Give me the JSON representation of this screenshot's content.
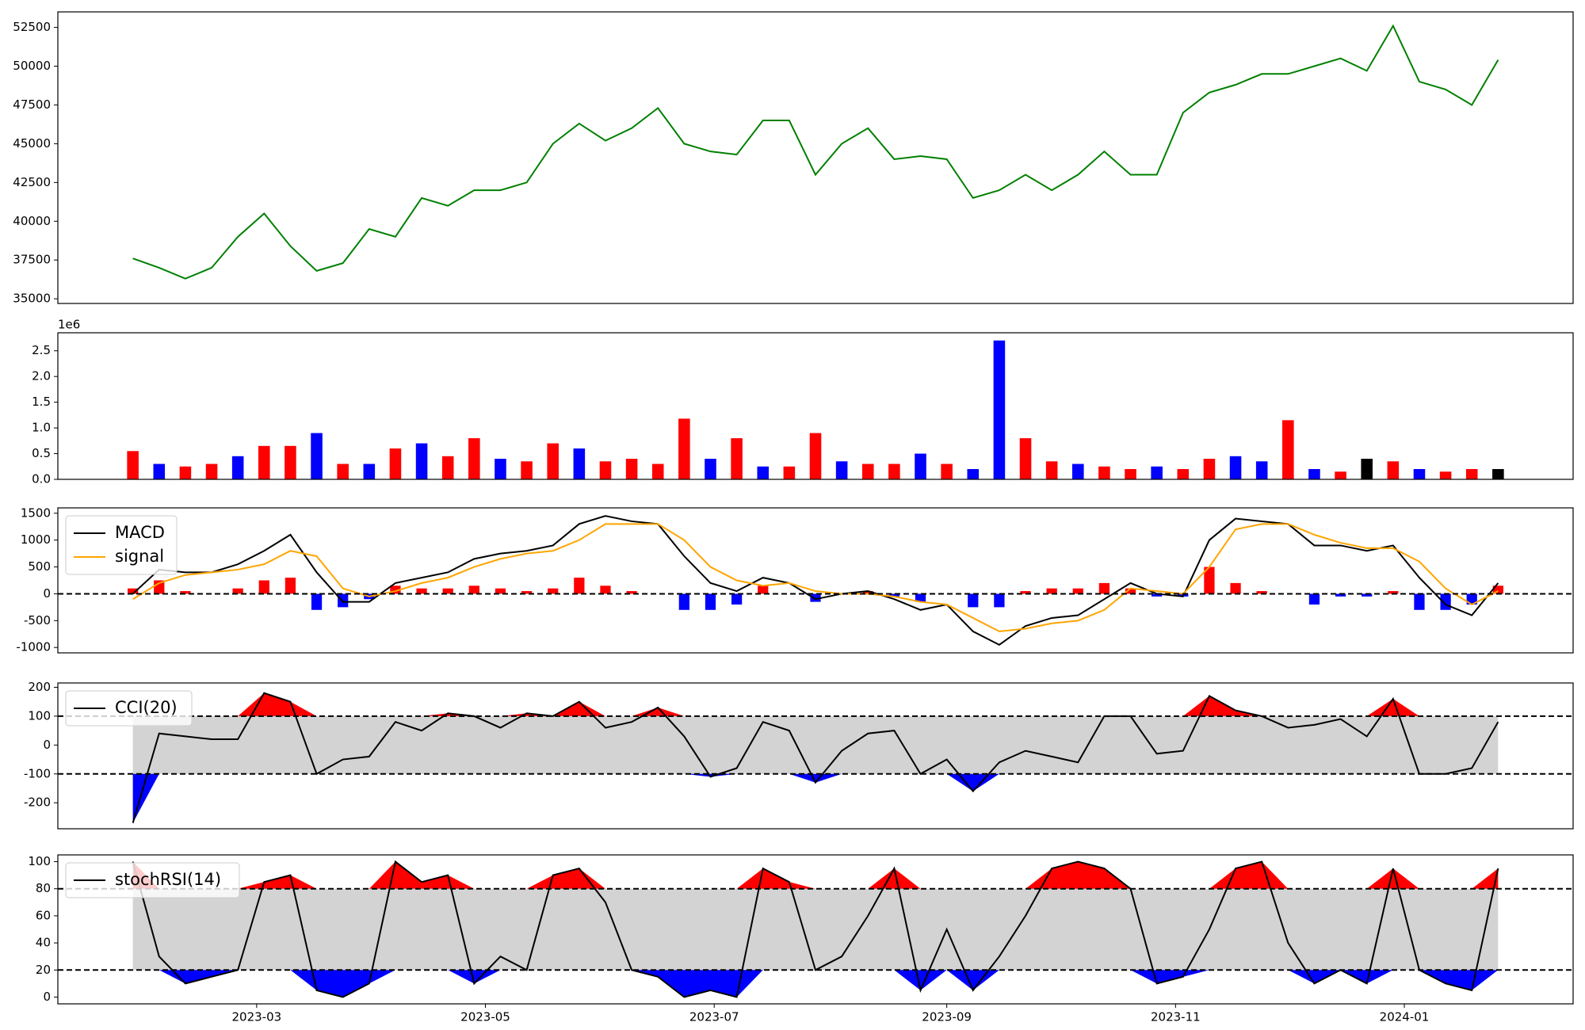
{
  "chart_data": [
    {
      "type": "line",
      "color": "#008000",
      "x": [
        "2023-01-27",
        "2023-02-03",
        "2023-02-10",
        "2023-02-17",
        "2023-02-24",
        "2023-03-03",
        "2023-03-10",
        "2023-03-17",
        "2023-03-24",
        "2023-03-31",
        "2023-04-07",
        "2023-04-14",
        "2023-04-21",
        "2023-04-28",
        "2023-05-05",
        "2023-05-12",
        "2023-05-19",
        "2023-05-26",
        "2023-06-02",
        "2023-06-09",
        "2023-06-16",
        "2023-06-23",
        "2023-06-30",
        "2023-07-07",
        "2023-07-14",
        "2023-07-21",
        "2023-07-28",
        "2023-08-04",
        "2023-08-11",
        "2023-08-18",
        "2023-08-25",
        "2023-09-01",
        "2023-09-08",
        "2023-09-15",
        "2023-09-22",
        "2023-09-29",
        "2023-10-06",
        "2023-10-13",
        "2023-10-20",
        "2023-10-27",
        "2023-11-03",
        "2023-11-10",
        "2023-11-17",
        "2023-11-24",
        "2023-12-01",
        "2023-12-08",
        "2023-12-15",
        "2023-12-22",
        "2023-12-29",
        "2024-01-05",
        "2024-01-12",
        "2024-01-19",
        "2024-01-26"
      ],
      "values": [
        37600,
        37000,
        36300,
        37000,
        39000,
        40500,
        38400,
        36800,
        37300,
        39500,
        39000,
        41500,
        41000,
        42000,
        42000,
        42500,
        45000,
        46300,
        45200,
        46000,
        47300,
        45000,
        44500,
        44300,
        46500,
        46500,
        43000,
        45000,
        46000,
        44000,
        44200,
        44000,
        41500,
        42000,
        43000,
        42000,
        43000,
        44500,
        43000,
        43000,
        47000,
        48300,
        48800,
        49500,
        49500,
        50000,
        50500,
        49700,
        52600,
        49000,
        48500,
        47500,
        50400
      ],
      "xlim": [
        "2023-01-07",
        "2024-02-15"
      ],
      "ylim": [
        34700,
        53500
      ],
      "yticks": [
        35000,
        37500,
        40000,
        42500,
        45000,
        47500,
        50000,
        52500
      ]
    },
    {
      "type": "bar",
      "offset_label": "1e6",
      "x": [
        "2023-01-27",
        "2023-02-03",
        "2023-02-10",
        "2023-02-17",
        "2023-02-24",
        "2023-03-03",
        "2023-03-10",
        "2023-03-17",
        "2023-03-24",
        "2023-03-31",
        "2023-04-07",
        "2023-04-14",
        "2023-04-21",
        "2023-04-28",
        "2023-05-05",
        "2023-05-12",
        "2023-05-19",
        "2023-05-26",
        "2023-06-02",
        "2023-06-09",
        "2023-06-16",
        "2023-06-23",
        "2023-06-30",
        "2023-07-07",
        "2023-07-14",
        "2023-07-21",
        "2023-07-28",
        "2023-08-04",
        "2023-08-11",
        "2023-08-18",
        "2023-08-25",
        "2023-09-01",
        "2023-09-08",
        "2023-09-15",
        "2023-09-22",
        "2023-09-29",
        "2023-10-06",
        "2023-10-13",
        "2023-10-20",
        "2023-10-27",
        "2023-11-03",
        "2023-11-10",
        "2023-11-17",
        "2023-11-24",
        "2023-12-01",
        "2023-12-08",
        "2023-12-15",
        "2023-12-22",
        "2023-12-29",
        "2024-01-05",
        "2024-01-12",
        "2024-01-19",
        "2024-01-26"
      ],
      "values": [
        550000,
        300000,
        250000,
        300000,
        450000,
        650000,
        650000,
        900000,
        300000,
        300000,
        600000,
        700000,
        450000,
        800000,
        400000,
        350000,
        700000,
        600000,
        350000,
        400000,
        300000,
        1180000,
        400000,
        800000,
        250000,
        250000,
        900000,
        350000,
        300000,
        300000,
        500000,
        300000,
        200000,
        2700000,
        800000,
        350000,
        300000,
        250000,
        200000,
        250000,
        200000,
        400000,
        450000,
        350000,
        1150000,
        200000,
        150000,
        400000,
        350000,
        200000,
        150000,
        200000,
        200000
      ],
      "colors": [
        "#ff0000",
        "#0000ff",
        "#ff0000",
        "#ff0000",
        "#0000ff",
        "#ff0000",
        "#ff0000",
        "#0000ff",
        "#ff0000",
        "#0000ff",
        "#ff0000",
        "#0000ff",
        "#ff0000",
        "#ff0000",
        "#0000ff",
        "#ff0000",
        "#ff0000",
        "#0000ff",
        "#ff0000",
        "#ff0000",
        "#ff0000",
        "#ff0000",
        "#0000ff",
        "#ff0000",
        "#0000ff",
        "#ff0000",
        "#ff0000",
        "#0000ff",
        "#ff0000",
        "#ff0000",
        "#0000ff",
        "#ff0000",
        "#0000ff",
        "#0000ff",
        "#ff0000",
        "#ff0000",
        "#0000ff",
        "#ff0000",
        "#ff0000",
        "#0000ff",
        "#ff0000",
        "#ff0000",
        "#0000ff",
        "#0000ff",
        "#ff0000",
        "#0000ff",
        "#ff0000",
        "#000000",
        "#ff0000",
        "#0000ff",
        "#ff0000",
        "#ff0000",
        "#000000"
      ],
      "xlim": [
        "2023-01-07",
        "2024-02-15"
      ],
      "ylim": [
        0,
        2850000
      ],
      "yticks": [
        {
          "value": 0,
          "label": "0.0"
        },
        {
          "value": 500000,
          "label": "0.5"
        },
        {
          "value": 1000000,
          "label": "1.0"
        },
        {
          "value": 1500000,
          "label": "1.5"
        },
        {
          "value": 2000000,
          "label": "2.0"
        },
        {
          "value": 2500000,
          "label": "2.5"
        }
      ]
    },
    {
      "type": "line",
      "legend": "upper left",
      "x": [
        "2023-01-27",
        "2023-02-03",
        "2023-02-10",
        "2023-02-17",
        "2023-02-24",
        "2023-03-03",
        "2023-03-10",
        "2023-03-17",
        "2023-03-24",
        "2023-03-31",
        "2023-04-07",
        "2023-04-14",
        "2023-04-21",
        "2023-04-28",
        "2023-05-05",
        "2023-05-12",
        "2023-05-19",
        "2023-05-26",
        "2023-06-02",
        "2023-06-09",
        "2023-06-16",
        "2023-06-23",
        "2023-06-30",
        "2023-07-07",
        "2023-07-14",
        "2023-07-21",
        "2023-07-28",
        "2023-08-04",
        "2023-08-11",
        "2023-08-18",
        "2023-08-25",
        "2023-09-01",
        "2023-09-08",
        "2023-09-15",
        "2023-09-22",
        "2023-09-29",
        "2023-10-06",
        "2023-10-13",
        "2023-10-20",
        "2023-10-27",
        "2023-11-03",
        "2023-11-10",
        "2023-11-17",
        "2023-11-24",
        "2023-12-01",
        "2023-12-08",
        "2023-12-15",
        "2023-12-22",
        "2023-12-29",
        "2024-01-05",
        "2024-01-12",
        "2024-01-19",
        "2024-01-26"
      ],
      "series": [
        {
          "name": "MACD",
          "color": "#000000",
          "values": [
            0,
            450,
            400,
            400,
            550,
            800,
            1100,
            400,
            -150,
            -150,
            200,
            300,
            400,
            650,
            750,
            800,
            900,
            1300,
            1450,
            1350,
            1300,
            700,
            200,
            50,
            300,
            200,
            -100,
            0,
            50,
            -100,
            -300,
            -200,
            -700,
            -950,
            -600,
            -450,
            -400,
            -100,
            200,
            0,
            -50,
            1000,
            1400,
            1350,
            1300,
            900,
            900,
            800,
            900,
            300,
            -200,
            -400,
            200
          ]
        },
        {
          "name": "signal",
          "color": "#ffa500",
          "values": [
            -100,
            200,
            350,
            400,
            450,
            550,
            800,
            700,
            100,
            -50,
            50,
            200,
            300,
            500,
            650,
            750,
            800,
            1000,
            1300,
            1300,
            1300,
            1000,
            500,
            250,
            150,
            200,
            50,
            0,
            0,
            -50,
            -150,
            -200,
            -450,
            -700,
            -650,
            -550,
            -500,
            -300,
            100,
            50,
            0,
            500,
            1200,
            1300,
            1300,
            1100,
            950,
            850,
            850,
            600,
            100,
            -200,
            50
          ]
        }
      ],
      "histogram": {
        "positive_color": "#ff0000",
        "negative_color": "#0000ff",
        "values": [
          100,
          250,
          50,
          0,
          100,
          250,
          300,
          -300,
          -250,
          -100,
          150,
          100,
          100,
          150,
          100,
          50,
          100,
          300,
          150,
          50,
          0,
          -300,
          -300,
          -200,
          150,
          0,
          -150,
          0,
          50,
          -50,
          -150,
          0,
          -250,
          -250,
          50,
          100,
          100,
          200,
          100,
          -50,
          -50,
          500,
          200,
          50,
          0,
          -200,
          -50,
          -50,
          50,
          -300,
          -300,
          -200,
          150
        ]
      },
      "hlines": [
        0
      ],
      "xlim": [
        "2023-01-07",
        "2024-02-15"
      ],
      "ylim": [
        -1100,
        1600
      ],
      "yticks": [
        -1000,
        -500,
        0,
        500,
        1000,
        1500
      ]
    },
    {
      "type": "line",
      "legend": "upper left",
      "x": [
        "2023-01-27",
        "2023-02-03",
        "2023-02-10",
        "2023-02-17",
        "2023-02-24",
        "2023-03-03",
        "2023-03-10",
        "2023-03-17",
        "2023-03-24",
        "2023-03-31",
        "2023-04-07",
        "2023-04-14",
        "2023-04-21",
        "2023-04-28",
        "2023-05-05",
        "2023-05-12",
        "2023-05-19",
        "2023-05-26",
        "2023-06-02",
        "2023-06-09",
        "2023-06-16",
        "2023-06-23",
        "2023-06-30",
        "2023-07-07",
        "2023-07-14",
        "2023-07-21",
        "2023-07-28",
        "2023-08-04",
        "2023-08-11",
        "2023-08-18",
        "2023-08-25",
        "2023-09-01",
        "2023-09-08",
        "2023-09-15",
        "2023-09-22",
        "2023-09-29",
        "2023-10-06",
        "2023-10-13",
        "2023-10-20",
        "2023-10-27",
        "2023-11-03",
        "2023-11-10",
        "2023-11-17",
        "2023-11-24",
        "2023-12-01",
        "2023-12-08",
        "2023-12-15",
        "2023-12-22",
        "2023-12-29",
        "2024-01-05",
        "2024-01-12",
        "2024-01-19",
        "2024-01-26"
      ],
      "series": [
        {
          "name": "CCI(20)",
          "color": "#000000",
          "values": [
            -270,
            40,
            30,
            20,
            20,
            180,
            150,
            -100,
            -50,
            -40,
            80,
            50,
            110,
            100,
            60,
            110,
            100,
            150,
            60,
            80,
            130,
            30,
            -110,
            -80,
            80,
            50,
            -130,
            -20,
            40,
            50,
            -100,
            -50,
            -160,
            -60,
            -20,
            -40,
            -60,
            100,
            100,
            -30,
            -20,
            170,
            120,
            100,
            60,
            70,
            90,
            30,
            160,
            -100,
            -100,
            -80,
            80
          ]
        }
      ],
      "hlines": [
        -100,
        100
      ],
      "fill": {
        "between": "#d3d3d3",
        "above": "#ff0000",
        "below": "#0000ff"
      },
      "xlim": [
        "2023-01-07",
        "2024-02-15"
      ],
      "ylim": [
        -290,
        215
      ],
      "yticks": [
        -200,
        -100,
        0,
        100,
        200
      ]
    },
    {
      "type": "line",
      "legend": "upper left",
      "x": [
        "2023-01-27",
        "2023-02-03",
        "2023-02-10",
        "2023-02-17",
        "2023-02-24",
        "2023-03-03",
        "2023-03-10",
        "2023-03-17",
        "2023-03-24",
        "2023-03-31",
        "2023-04-07",
        "2023-04-14",
        "2023-04-21",
        "2023-04-28",
        "2023-05-05",
        "2023-05-12",
        "2023-05-19",
        "2023-05-26",
        "2023-06-02",
        "2023-06-09",
        "2023-06-16",
        "2023-06-23",
        "2023-06-30",
        "2023-07-07",
        "2023-07-14",
        "2023-07-21",
        "2023-07-28",
        "2023-08-04",
        "2023-08-11",
        "2023-08-18",
        "2023-08-25",
        "2023-09-01",
        "2023-09-08",
        "2023-09-15",
        "2023-09-22",
        "2023-09-29",
        "2023-10-06",
        "2023-10-13",
        "2023-10-20",
        "2023-10-27",
        "2023-11-03",
        "2023-11-10",
        "2023-11-17",
        "2023-11-24",
        "2023-12-01",
        "2023-12-08",
        "2023-12-15",
        "2023-12-22",
        "2023-12-29",
        "2024-01-05",
        "2024-01-12",
        "2024-01-19",
        "2024-01-26"
      ],
      "series": [
        {
          "name": "stochRSI(14)",
          "color": "#000000",
          "values": [
            100,
            30,
            10,
            15,
            20,
            85,
            90,
            5,
            0,
            10,
            100,
            85,
            90,
            10,
            30,
            20,
            90,
            95,
            70,
            20,
            15,
            0,
            5,
            0,
            95,
            85,
            20,
            30,
            60,
            95,
            5,
            50,
            5,
            30,
            60,
            95,
            100,
            95,
            80,
            10,
            15,
            50,
            95,
            100,
            40,
            10,
            20,
            10,
            95,
            20,
            10,
            5,
            95
          ]
        }
      ],
      "hlines": [
        20,
        80
      ],
      "fill": {
        "between": "#d3d3d3",
        "above": "#ff0000",
        "below": "#0000ff"
      },
      "xlim": [
        "2023-01-07",
        "2024-02-15"
      ],
      "ylim": [
        -5,
        105
      ],
      "yticks": [
        0,
        20,
        40,
        60,
        80,
        100
      ],
      "xticks": [
        {
          "value": "2023-03-01",
          "label": "2023-03"
        },
        {
          "value": "2023-05-01",
          "label": "2023-05"
        },
        {
          "value": "2023-07-01",
          "label": "2023-07"
        },
        {
          "value": "2023-09-01",
          "label": "2023-09"
        },
        {
          "value": "2023-11-01",
          "label": "2023-11"
        },
        {
          "value": "2024-01-01",
          "label": "2024-01"
        }
      ]
    }
  ]
}
